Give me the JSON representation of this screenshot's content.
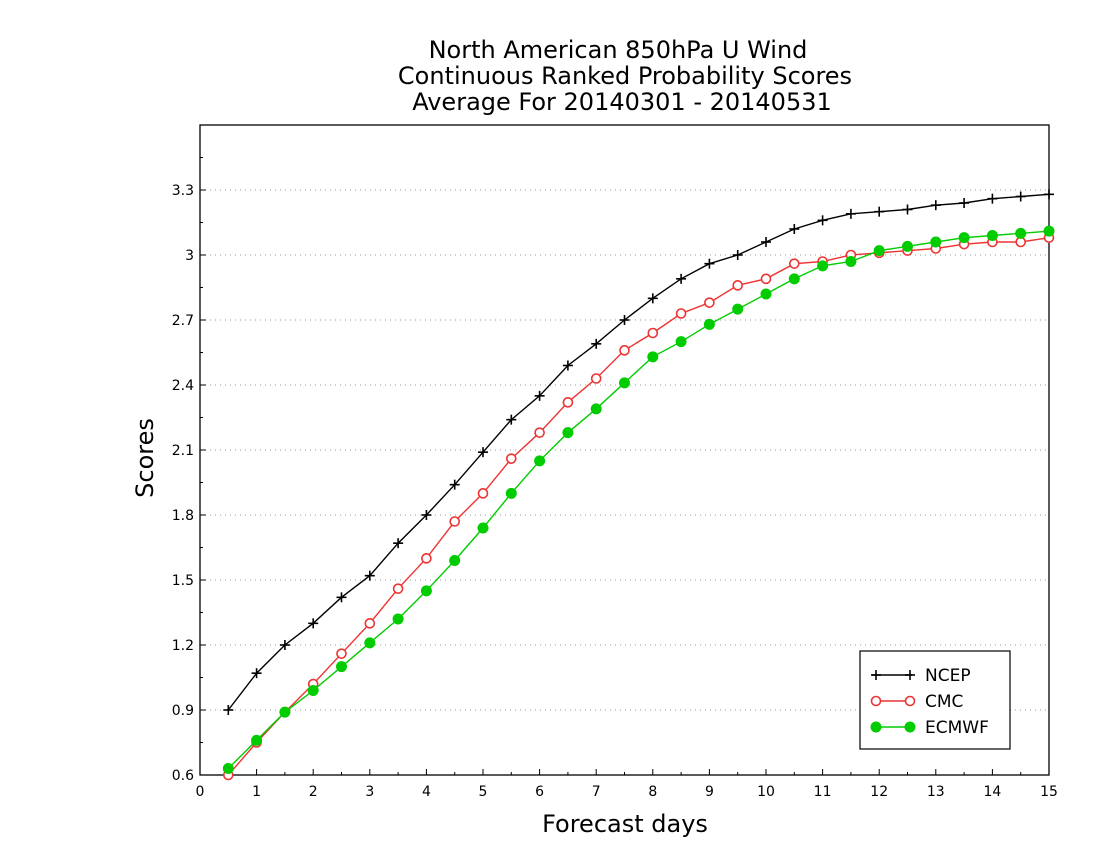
{
  "chart_data": {
    "type": "line",
    "title": [
      "North American 850hPa U Wind",
      "Continuous Ranked Probability Scores",
      "Average For 20140301 - 20140531"
    ],
    "xlabel": "Forecast days",
    "ylabel": "Scores",
    "xlim": [
      0,
      15
    ],
    "ylim": [
      0.6,
      3.6
    ],
    "x_ticks": [
      0,
      1,
      2,
      3,
      4,
      5,
      6,
      7,
      8,
      9,
      10,
      11,
      12,
      13,
      14,
      15
    ],
    "y_ticks": [
      0.6,
      0.9,
      1.2,
      1.5,
      1.8,
      2.1,
      2.4,
      2.7,
      3.0,
      3.3
    ],
    "x_tick_labels": [
      "0",
      "1",
      "2",
      "3",
      "4",
      "5",
      "6",
      "7",
      "8",
      "9",
      "10",
      "11",
      "12",
      "13",
      "14",
      "15"
    ],
    "y_tick_labels": [
      "0.6",
      "0.9",
      "1.2",
      "1.5",
      "1.8",
      "2.1",
      "2.4",
      "2.7",
      "3",
      "3.3"
    ],
    "grid": "horizontal dotted",
    "legend_position": "bottom-right",
    "x": [
      0.5,
      1,
      1.5,
      2,
      2.5,
      3,
      3.5,
      4,
      4.5,
      5,
      5.5,
      6,
      6.5,
      7,
      7.5,
      8,
      8.5,
      9,
      9.5,
      10,
      10.5,
      11,
      11.5,
      12,
      12.5,
      13,
      13.5,
      14,
      14.5,
      15
    ],
    "series": [
      {
        "name": "NCEP",
        "color": "#000000",
        "marker": "plus",
        "values": [
          0.9,
          1.07,
          1.2,
          1.3,
          1.42,
          1.52,
          1.67,
          1.8,
          1.94,
          2.09,
          2.24,
          2.35,
          2.49,
          2.59,
          2.7,
          2.8,
          2.89,
          2.96,
          3.0,
          3.06,
          3.12,
          3.16,
          3.19,
          3.2,
          3.21,
          3.23,
          3.24,
          3.26,
          3.27,
          3.28
        ]
      },
      {
        "name": "CMC",
        "color": "#ee3333",
        "marker": "open-circle",
        "values": [
          0.6,
          0.75,
          0.89,
          1.02,
          1.16,
          1.3,
          1.46,
          1.6,
          1.77,
          1.9,
          2.06,
          2.18,
          2.32,
          2.43,
          2.56,
          2.64,
          2.73,
          2.78,
          2.86,
          2.89,
          2.96,
          2.97,
          3.0,
          3.01,
          3.02,
          3.03,
          3.05,
          3.06,
          3.06,
          3.08
        ]
      },
      {
        "name": "ECMWF",
        "color": "#00cc00",
        "marker": "filled-circle",
        "values": [
          0.63,
          0.76,
          0.89,
          0.99,
          1.1,
          1.21,
          1.32,
          1.45,
          1.59,
          1.74,
          1.9,
          2.05,
          2.18,
          2.29,
          2.41,
          2.53,
          2.6,
          2.68,
          2.75,
          2.82,
          2.89,
          2.95,
          2.97,
          3.02,
          3.04,
          3.06,
          3.08,
          3.09,
          3.1,
          3.11
        ]
      }
    ]
  }
}
